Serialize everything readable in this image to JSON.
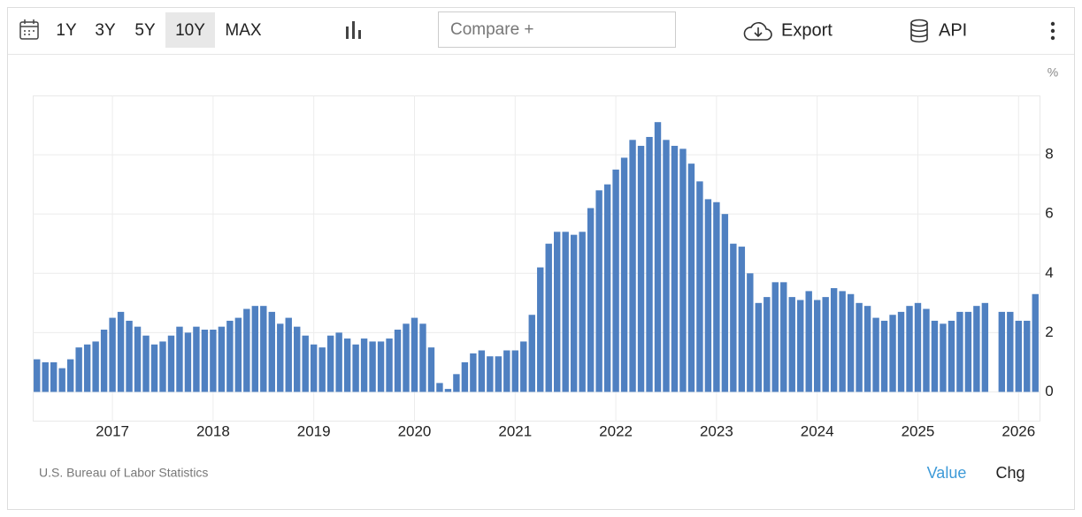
{
  "toolbar": {
    "ranges": [
      "1Y",
      "3Y",
      "5Y",
      "10Y",
      "MAX"
    ],
    "active_range": 3,
    "compare": "Compare +",
    "export": "Export",
    "api": "API"
  },
  "chart_data": {
    "type": "bar",
    "y_unit": "%",
    "color": "#4f80c1",
    "grid": true,
    "categories": [
      null,
      null,
      null,
      null,
      null,
      null,
      null,
      null,
      null,
      "2017",
      null,
      null,
      null,
      null,
      null,
      null,
      null,
      null,
      null,
      null,
      null,
      "2018",
      null,
      null,
      null,
      null,
      null,
      null,
      null,
      null,
      null,
      null,
      null,
      "2019",
      null,
      null,
      null,
      null,
      null,
      null,
      null,
      null,
      null,
      null,
      null,
      "2020",
      null,
      null,
      null,
      null,
      null,
      null,
      null,
      null,
      null,
      null,
      null,
      "2021",
      null,
      null,
      null,
      null,
      null,
      null,
      null,
      null,
      null,
      null,
      null,
      "2022",
      null,
      null,
      null,
      null,
      null,
      null,
      null,
      null,
      null,
      null,
      null,
      "2023",
      null,
      null,
      null,
      null,
      null,
      null,
      null,
      null,
      null,
      null,
      null,
      "2024",
      null,
      null,
      null,
      null,
      null,
      null,
      null,
      null,
      null,
      null,
      null,
      "2025",
      null,
      null,
      null,
      null,
      null,
      null,
      null,
      null,
      null,
      null,
      null,
      "2026",
      null,
      null
    ],
    "values": [
      1.1,
      1.0,
      1.0,
      0.8,
      1.1,
      1.5,
      1.6,
      1.7,
      2.1,
      2.5,
      2.7,
      2.4,
      2.2,
      1.9,
      1.6,
      1.7,
      1.9,
      2.2,
      2.0,
      2.2,
      2.1,
      2.1,
      2.2,
      2.4,
      2.5,
      2.8,
      2.9,
      2.9,
      2.7,
      2.3,
      2.5,
      2.2,
      1.9,
      1.6,
      1.5,
      1.9,
      2.0,
      1.8,
      1.6,
      1.8,
      1.7,
      1.7,
      1.8,
      2.1,
      2.3,
      2.5,
      2.3,
      1.5,
      0.3,
      0.1,
      0.6,
      1.0,
      1.3,
      1.4,
      1.2,
      1.2,
      1.4,
      1.4,
      1.7,
      2.6,
      4.2,
      5.0,
      5.4,
      5.4,
      5.3,
      5.4,
      6.2,
      6.8,
      7.0,
      7.5,
      7.9,
      8.5,
      8.3,
      8.6,
      9.1,
      8.5,
      8.3,
      8.2,
      7.7,
      7.1,
      6.5,
      6.4,
      6.0,
      5.0,
      4.9,
      4.0,
      3.0,
      3.2,
      3.7,
      3.7,
      3.2,
      3.1,
      3.4,
      3.1,
      3.2,
      3.5,
      3.4,
      3.3,
      3.0,
      2.9,
      2.5,
      2.4,
      2.6,
      2.7,
      2.9,
      3.0,
      2.8,
      2.4,
      2.3,
      2.4,
      2.7,
      2.7,
      2.9,
      3.0,
      null,
      2.7,
      2.7,
      2.4,
      2.4,
      3.3
    ],
    "ylim": [
      -1,
      10
    ],
    "yticks": [
      0,
      2,
      4,
      6,
      8
    ]
  },
  "footer": {
    "source": "U.S. Bureau of Labor Statistics",
    "views": [
      "Value",
      "Chg"
    ],
    "active_view": 0
  }
}
